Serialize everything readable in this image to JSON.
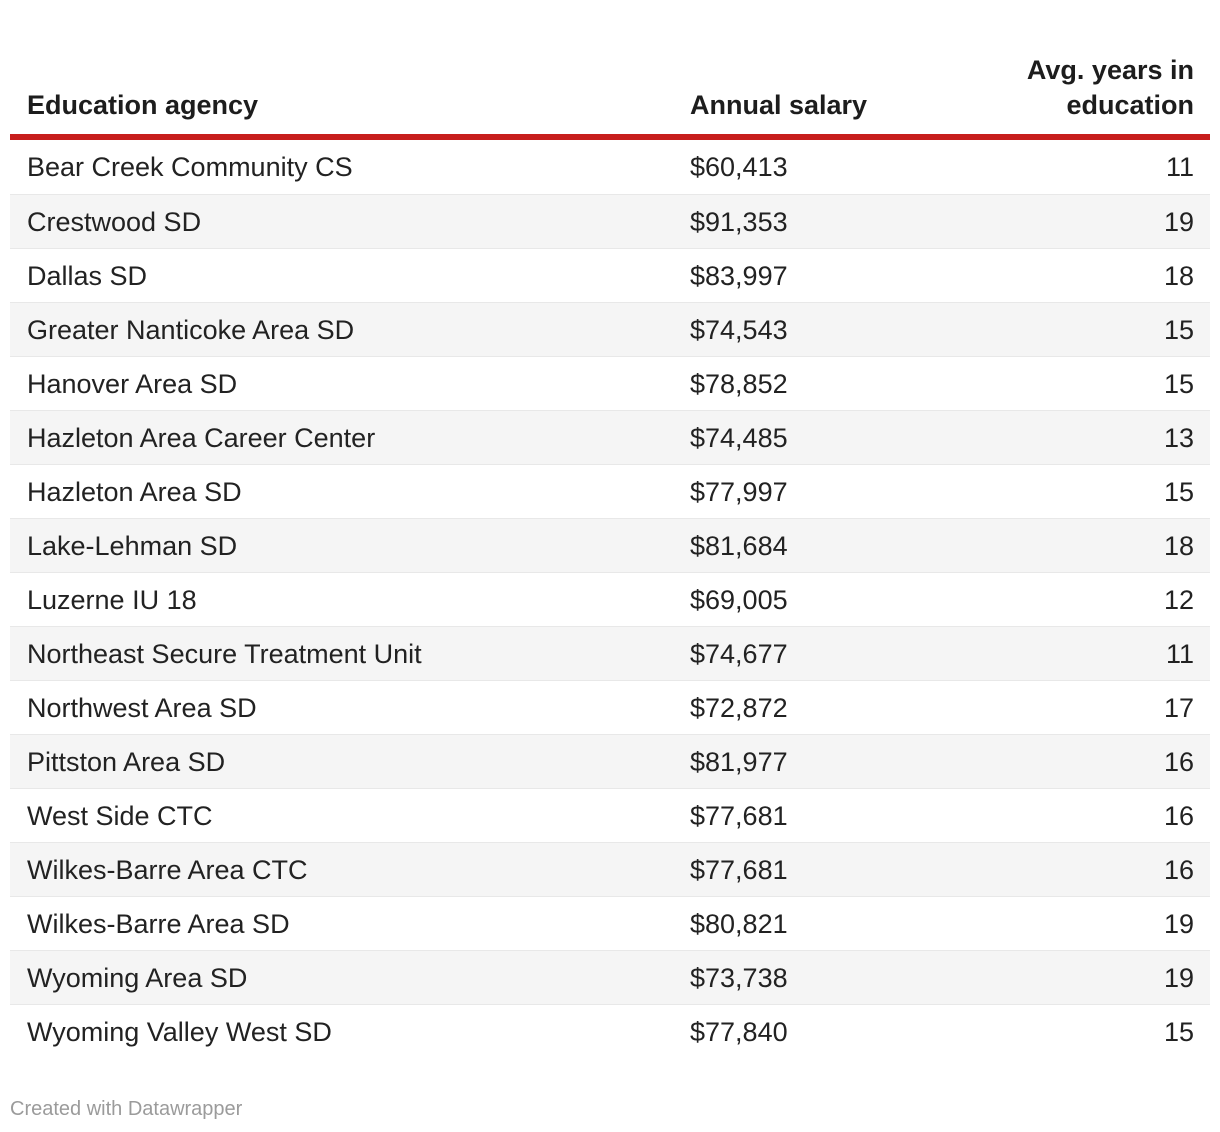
{
  "chart_data": {
    "type": "table",
    "title": "",
    "columns": [
      {
        "label": "Education agency",
        "align": "left"
      },
      {
        "label": "Annual salary",
        "align": "left"
      },
      {
        "label": "Avg. years in education",
        "align": "right"
      }
    ],
    "rows": [
      [
        "Bear Creek Community CS",
        "$60,413",
        "11"
      ],
      [
        "Crestwood SD",
        "$91,353",
        "19"
      ],
      [
        "Dallas SD",
        "$83,997",
        "18"
      ],
      [
        "Greater Nanticoke Area SD",
        "$74,543",
        "15"
      ],
      [
        "Hanover Area SD",
        "$78,852",
        "15"
      ],
      [
        "Hazleton Area Career Center",
        "$74,485",
        "13"
      ],
      [
        "Hazleton Area SD",
        "$77,997",
        "15"
      ],
      [
        "Lake-Lehman SD",
        "$81,684",
        "18"
      ],
      [
        "Luzerne IU 18",
        "$69,005",
        "12"
      ],
      [
        "Northeast Secure Treatment Unit",
        "$74,677",
        "11"
      ],
      [
        "Northwest Area SD",
        "$72,872",
        "17"
      ],
      [
        "Pittston Area SD",
        "$81,977",
        "16"
      ],
      [
        "West Side CTC",
        "$77,681",
        "16"
      ],
      [
        "Wilkes-Barre Area CTC",
        "$77,681",
        "16"
      ],
      [
        "Wilkes-Barre Area SD",
        "$80,821",
        "19"
      ],
      [
        "Wyoming Area SD",
        "$73,738",
        "19"
      ],
      [
        "Wyoming Valley West SD",
        "$77,840",
        "15"
      ]
    ],
    "layout": {
      "striped_rows": true,
      "header_rule_color": "#c71e1d",
      "grid": "horizontal-row-separators"
    }
  },
  "footer": {
    "attribution": "Created with Datawrapper"
  },
  "colors": {
    "accent_red": "#c71e1d",
    "text": "#222222",
    "stripe": "#f5f5f5",
    "row_border": "#e8e8e8",
    "muted": "#9b9b9b"
  }
}
